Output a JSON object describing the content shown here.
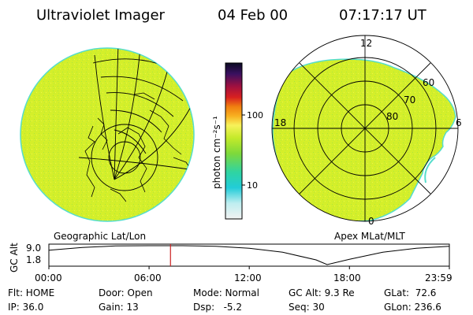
{
  "header": {
    "instrument": "Ultraviolet Imager",
    "date": "04 Feb 00",
    "time": "07:17:17 UT"
  },
  "colors": {
    "emission": "#d4ef2a",
    "emission_edge": "#55ddcc",
    "map_lines": "#000000",
    "time_marker": "#cc2222"
  },
  "colorbar": {
    "label": "photon cm⁻²s⁻¹",
    "ticks": [
      "100",
      "10"
    ]
  },
  "geo_map": {
    "caption": "Geographic Lat/Lon"
  },
  "polar_plot": {
    "caption": "Apex MLat/MLT",
    "mlt_labels": [
      "12",
      "18",
      "6",
      "0"
    ],
    "lat_labels": [
      "60",
      "70",
      "80"
    ]
  },
  "alt_panel": {
    "ylabel": "GC Alt",
    "ytick_labels": [
      "9.0",
      "1.8"
    ],
    "xtick_labels": [
      "00:00",
      "06:00",
      "12:00",
      "18:00",
      "23:59"
    ]
  },
  "chart_data": {
    "type": "line",
    "title": "",
    "xlabel": "",
    "ylabel": "GC Alt",
    "xlim": [
      "00:00",
      "23:59"
    ],
    "ylim": [
      1.8,
      9.0
    ],
    "series": [
      {
        "x": [
          "00:00",
          "02:00",
          "04:00",
          "06:00",
          "08:00",
          "10:00",
          "12:00",
          "14:00",
          "16:00",
          "16:40",
          "18:00",
          "20:00",
          "22:00",
          "23:59"
        ],
        "values": [
          7.3,
          8.3,
          8.9,
          9.0,
          9.0,
          8.8,
          8.0,
          6.5,
          3.6,
          1.8,
          3.8,
          6.5,
          8.0,
          8.8
        ]
      }
    ],
    "current_time": "07:17",
    "current_alt": 9.3
  },
  "status": {
    "flt": "Flt: HOME",
    "ip": "IP: 36.0",
    "door": "Door: Open",
    "gain": "Gain: 13",
    "mode": "Mode: Normal",
    "dsp": "Dsp:   -5.2",
    "gcalt": "GC Alt: 9.3 Re",
    "seq": "Seq: 30",
    "glat": "GLat:  72.6",
    "glon": "GLon: 236.6"
  }
}
